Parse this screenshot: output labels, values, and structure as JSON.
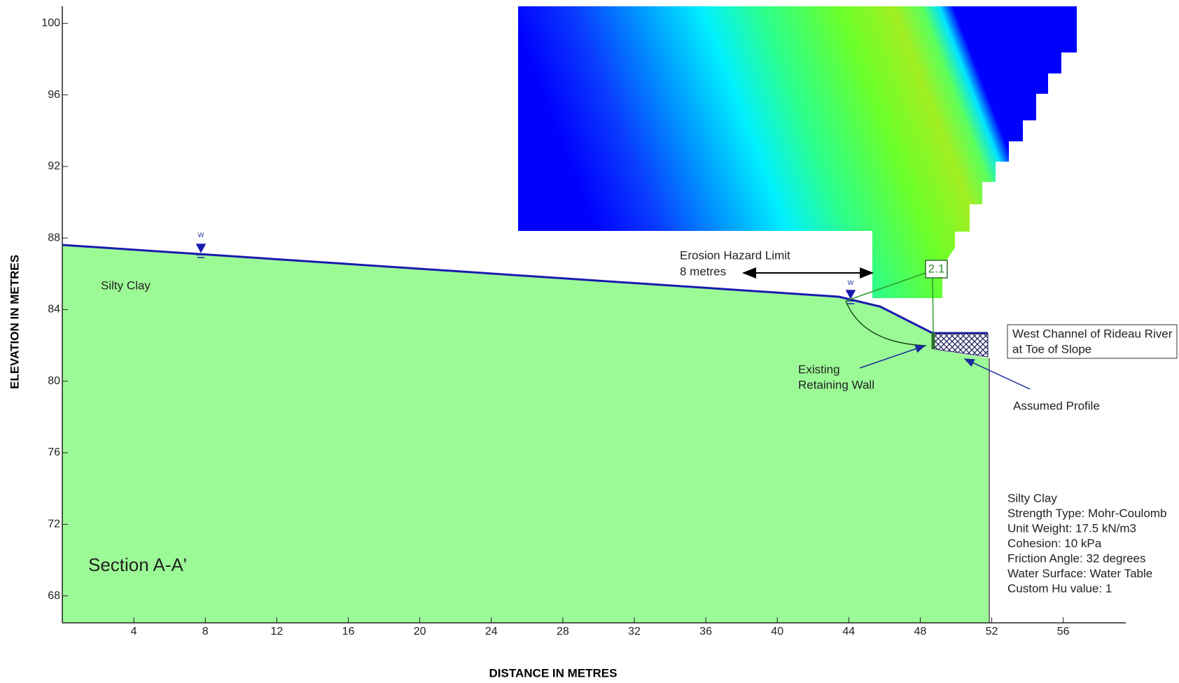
{
  "axes": {
    "x_label": "DISTANCE IN METRES",
    "y_label": "ELEVATION IN METRES",
    "x_ticks": [
      4,
      8,
      12,
      16,
      20,
      24,
      28,
      32,
      36,
      40,
      44,
      48,
      52,
      56
    ],
    "y_ticks": [
      68,
      72,
      76,
      80,
      84,
      88,
      92,
      96,
      100
    ]
  },
  "section_title": "Section A-A'",
  "material_label": "Silty Clay",
  "water_table_symbol": "w",
  "factor_of_safety": 2.1,
  "erosion_limit": {
    "title": "Erosion Hazard Limit",
    "distance": "8 metres"
  },
  "river_label": [
    "West Channel of Rideau River",
    "at Toe of Slope"
  ],
  "wall_label": [
    "Existing",
    "Retaining Wall"
  ],
  "profile_label": "Assumed Profile",
  "material_properties": [
    "Silty Clay",
    "Strength Type: Mohr-Coulomb",
    "Unit Weight: 17.5 kN/m3",
    "Cohesion: 10 kPa",
    "Friction Angle: 32 degrees",
    "Water Surface: Water Table",
    "Custom Hu value: 1"
  ]
}
